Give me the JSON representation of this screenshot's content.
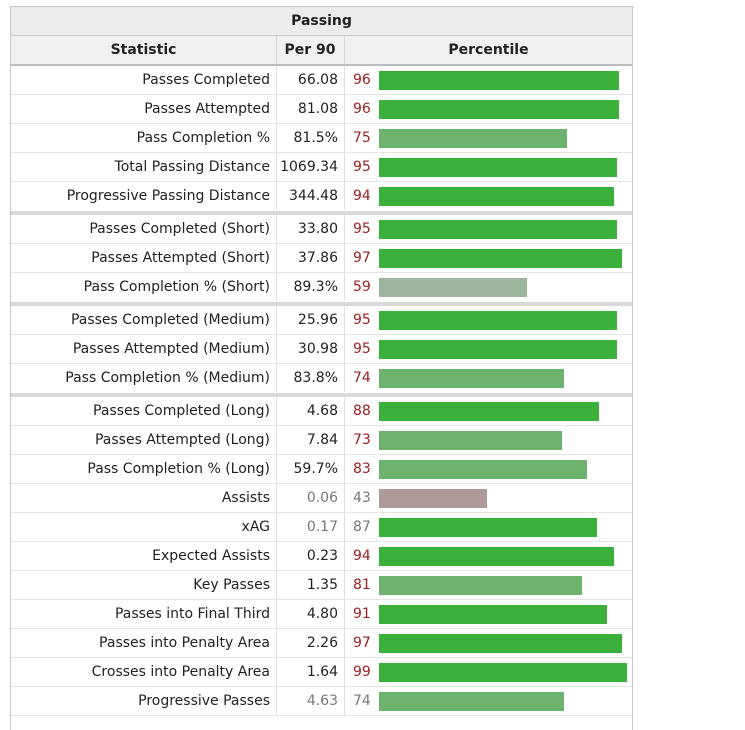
{
  "table": {
    "title": "Passing",
    "headers": {
      "statistic": "Statistic",
      "per90": "Per 90",
      "percentile": "Percentile"
    }
  },
  "colors": {
    "high": "#3bb03b",
    "mid": "#6db36d",
    "low": "#9cb59c",
    "very_low": "#b09999",
    "percentile_text": "#9b2020"
  },
  "chart_data": {
    "type": "bar",
    "title": "Passing",
    "xlabel": "",
    "ylabel": "Percentile",
    "ylim": [
      0,
      100
    ],
    "rows": [
      {
        "statistic": "Passes Completed",
        "per90": "66.08",
        "percentile": 96
      },
      {
        "statistic": "Passes Attempted",
        "per90": "81.08",
        "percentile": 96
      },
      {
        "statistic": "Pass Completion %",
        "per90": "81.5%",
        "percentile": 75
      },
      {
        "statistic": "Total Passing Distance",
        "per90": "1069.34",
        "percentile": 95
      },
      {
        "statistic": "Progressive Passing Distance",
        "per90": "344.48",
        "percentile": 94,
        "group_end": true
      },
      {
        "statistic": "Passes Completed (Short)",
        "per90": "33.80",
        "percentile": 95
      },
      {
        "statistic": "Passes Attempted (Short)",
        "per90": "37.86",
        "percentile": 97
      },
      {
        "statistic": "Pass Completion % (Short)",
        "per90": "89.3%",
        "percentile": 59,
        "group_end": true
      },
      {
        "statistic": "Passes Completed (Medium)",
        "per90": "25.96",
        "percentile": 95
      },
      {
        "statistic": "Passes Attempted (Medium)",
        "per90": "30.98",
        "percentile": 95
      },
      {
        "statistic": "Pass Completion % (Medium)",
        "per90": "83.8%",
        "percentile": 74,
        "group_end": true
      },
      {
        "statistic": "Passes Completed (Long)",
        "per90": "4.68",
        "percentile": 88
      },
      {
        "statistic": "Passes Attempted (Long)",
        "per90": "7.84",
        "percentile": 73
      },
      {
        "statistic": "Pass Completion % (Long)",
        "per90": "59.7%",
        "percentile": 83
      },
      {
        "statistic": "Assists",
        "per90": "0.06",
        "percentile": 43,
        "muted": true
      },
      {
        "statistic": "xAG",
        "per90": "0.17",
        "percentile": 87,
        "muted": true
      },
      {
        "statistic": "Expected Assists",
        "per90": "0.23",
        "percentile": 94
      },
      {
        "statistic": "Key Passes",
        "per90": "1.35",
        "percentile": 81
      },
      {
        "statistic": "Passes into Final Third",
        "per90": "4.80",
        "percentile": 91
      },
      {
        "statistic": "Passes into Penalty Area",
        "per90": "2.26",
        "percentile": 97
      },
      {
        "statistic": "Crosses into Penalty Area",
        "per90": "1.64",
        "percentile": 99
      },
      {
        "statistic": "Progressive Passes",
        "per90": "4.63",
        "percentile": 74,
        "muted": true
      }
    ]
  }
}
